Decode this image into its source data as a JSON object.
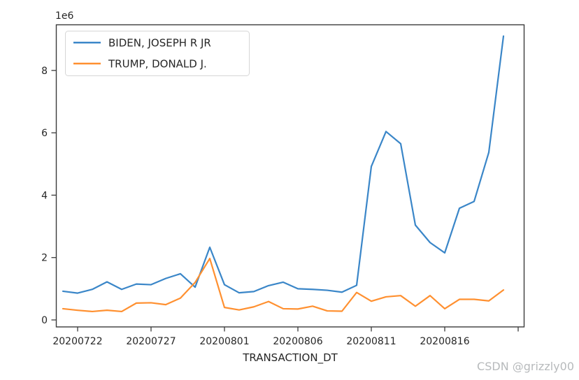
{
  "watermark": {
    "text": "CSDN @grizzly00"
  },
  "chart_data": {
    "type": "line",
    "title": "",
    "xlabel": "TRANSACTION_DT",
    "ylabel": "",
    "y_offset_label": "1e6",
    "grid": false,
    "legend_position": "upper left",
    "ylim": [
      -220000,
      9470000
    ],
    "x": [
      "20200721",
      "20200722",
      "20200723",
      "20200724",
      "20200725",
      "20200726",
      "20200727",
      "20200728",
      "20200729",
      "20200730",
      "20200731",
      "20200801",
      "20200802",
      "20200803",
      "20200804",
      "20200805",
      "20200806",
      "20200807",
      "20200808",
      "20200809",
      "20200810",
      "20200811",
      "20200812",
      "20200813",
      "20200814",
      "20200815",
      "20200816",
      "20200817",
      "20200818",
      "20200819",
      "20200820"
    ],
    "x_ticks": [
      {
        "index": 1,
        "label": "20200722"
      },
      {
        "index": 6,
        "label": "20200727"
      },
      {
        "index": 11,
        "label": "20200801"
      },
      {
        "index": 16,
        "label": "20200806"
      },
      {
        "index": 21,
        "label": "20200811"
      },
      {
        "index": 26,
        "label": "20200816"
      },
      {
        "index": 31,
        "label": ""
      }
    ],
    "y_ticks": [
      {
        "value": 0,
        "label": "0"
      },
      {
        "value": 2000000,
        "label": "2"
      },
      {
        "value": 4000000,
        "label": "4"
      },
      {
        "value": 6000000,
        "label": "6"
      },
      {
        "value": 8000000,
        "label": "8"
      }
    ],
    "series": [
      {
        "name": "BIDEN, JOSEPH R JR",
        "color": "#3a86c8",
        "values": [
          920000,
          860000,
          980000,
          1220000,
          980000,
          1150000,
          1130000,
          1330000,
          1480000,
          1050000,
          2330000,
          1130000,
          870000,
          910000,
          1100000,
          1210000,
          1000000,
          980000,
          950000,
          890000,
          1110000,
          4920000,
          6040000,
          5650000,
          3040000,
          2480000,
          2150000,
          3580000,
          3800000,
          5370000,
          9100000
        ]
      },
      {
        "name": "TRUMP, DONALD J.",
        "color": "#ff9030",
        "values": [
          360000,
          310000,
          270000,
          310000,
          270000,
          540000,
          550000,
          490000,
          700000,
          1200000,
          1970000,
          400000,
          320000,
          420000,
          590000,
          360000,
          350000,
          440000,
          290000,
          280000,
          880000,
          600000,
          740000,
          780000,
          440000,
          780000,
          360000,
          660000,
          660000,
          610000,
          960000
        ]
      }
    ]
  }
}
